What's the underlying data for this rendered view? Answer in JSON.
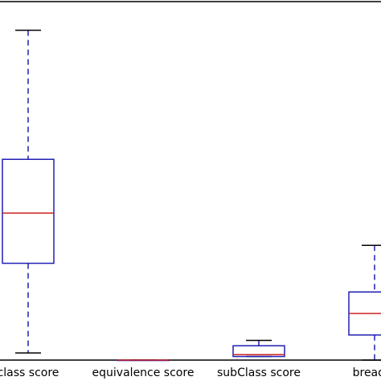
{
  "chart_data": {
    "type": "box",
    "title": "",
    "xlabel": "",
    "ylabel": "",
    "ylim": [
      0,
      1
    ],
    "grid": false,
    "categories": [
      "subClass score",
      "equivalence score",
      "subClass score",
      "breadth score"
    ],
    "tick_labels_visible": [
      "class score",
      "equivalence score",
      "subClass score",
      "breadth"
    ],
    "boxes": [
      {
        "name": "subClass score",
        "whisker_low": 0.02,
        "q1": 0.27,
        "median": 0.41,
        "q3": 0.56,
        "whisker_high": 0.92
      },
      {
        "name": "equivalence score",
        "whisker_low": 0.0,
        "q1": 0.0,
        "median": 0.0,
        "q3": 0.0,
        "whisker_high": 0.0
      },
      {
        "name": "subClass score",
        "whisker_low": 0.01,
        "q1": 0.01,
        "median": 0.015,
        "q3": 0.04,
        "whisker_high": 0.055
      },
      {
        "name": "breadth score",
        "whisker_low": 0.0,
        "q1": 0.07,
        "median": 0.13,
        "q3": 0.19,
        "whisker_high": 0.32
      }
    ],
    "colors": {
      "box": "#1f1fb4",
      "median": "#cc2222",
      "whisker": "#1f1fb4",
      "cap": "#000000",
      "axes": "#000000"
    }
  }
}
